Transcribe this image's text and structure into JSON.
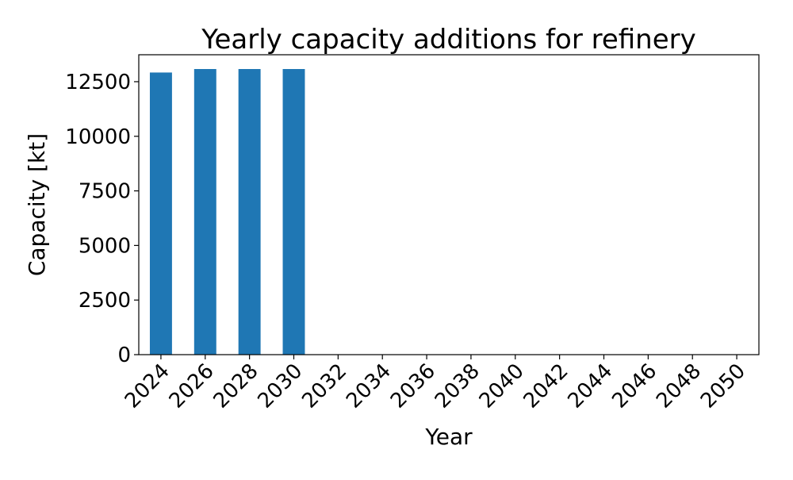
{
  "chart_data": {
    "type": "bar",
    "title": "Yearly capacity additions for refinery",
    "xlabel": "Year",
    "ylabel": "Capacity [kt]",
    "categories": [
      "2024",
      "2026",
      "2028",
      "2030",
      "2032",
      "2034",
      "2036",
      "2038",
      "2040",
      "2042",
      "2044",
      "2046",
      "2048",
      "2050"
    ],
    "values": [
      12920,
      13080,
      13080,
      13080,
      0,
      0,
      0,
      0,
      0,
      0,
      0,
      0,
      0,
      0
    ],
    "yticks": [
      0,
      2500,
      5000,
      7500,
      10000,
      12500
    ],
    "ylim": [
      0,
      13734
    ],
    "bar_color": "#1f77b4",
    "grid": false,
    "legend": "none"
  }
}
